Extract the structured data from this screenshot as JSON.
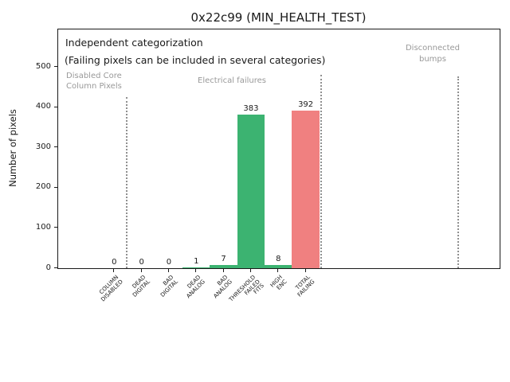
{
  "title": "0x22c99 (MIN_HEALTH_TEST)",
  "colors": {
    "bar_green": "#3CB371",
    "bar_red": "#F08080",
    "section_text": "#999999",
    "separator_gray": "#909090",
    "axis_text": "#1a1a1a"
  },
  "chart_data": {
    "type": "bar",
    "title": "0x22c99 (MIN_HEALTH_TEST)",
    "xlabel": "",
    "ylabel": "Number of pixels",
    "categories": [
      "COLUMN\nDISABLED",
      "DEAD\nDIGITAL",
      "BAD\nDIGITAL",
      "DEAD\nANALOG",
      "BAD\nANALOG",
      "THRESHOLD\nFAILED\nFITS",
      "HIGH\nENC",
      "TOTAL\nFAILING"
    ],
    "values": [
      0,
      0,
      0,
      1,
      7,
      383,
      8,
      392
    ],
    "bar_colors": [
      "#3CB371",
      "#3CB371",
      "#3CB371",
      "#3CB371",
      "#3CB371",
      "#3CB371",
      "#3CB371",
      "#F08080"
    ],
    "value_labels": [
      "0",
      "0",
      "0",
      "1",
      "7",
      "383",
      "8",
      "392"
    ],
    "yticks": [
      0,
      100,
      200,
      300,
      400,
      500
    ],
    "ylim": [
      0,
      594
    ],
    "grid": false,
    "legend": null,
    "annotations": [
      "Independent categorization",
      "(Failing pixels can be included in several categories)"
    ],
    "sections": [
      {
        "label": "Disabled Core\nColumn Pixels"
      },
      {
        "label": "Electrical failures"
      },
      {
        "label": "Disconnected\nbumps"
      }
    ]
  }
}
